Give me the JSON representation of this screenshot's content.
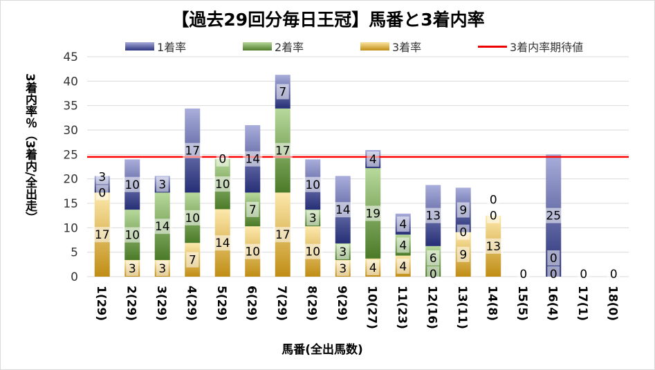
{
  "chart_data": {
    "type": "bar",
    "stacked": true,
    "title": "【過去29回分毎日王冠】馬番と3着内率",
    "xlabel": "馬番(全出馬数)",
    "ylabel": "3着内率％（3着内/全出走）",
    "ylim": [
      0,
      45
    ],
    "yticks": [
      0,
      5,
      10,
      15,
      20,
      25,
      30,
      35,
      40,
      45
    ],
    "categories": [
      "1(29)",
      "2(29)",
      "3(29)",
      "4(29)",
      "5(29)",
      "6(29)",
      "7(29)",
      "8(29)",
      "9(29)",
      "10(27)",
      "11(23)",
      "12(16)",
      "13(11)",
      "14(8)",
      "15(5)",
      "16(4)",
      "17(1)",
      "18(0)"
    ],
    "series": [
      {
        "name": "3着率",
        "color": "#d9a521",
        "values": [
          17.2,
          3.4,
          3.4,
          6.9,
          13.8,
          10.3,
          17.2,
          10.3,
          3.4,
          3.7,
          4.3,
          0,
          9.1,
          12.5,
          0,
          0,
          0,
          0
        ],
        "labels": [
          "17",
          "3",
          "3",
          "7",
          "14",
          "10",
          "17",
          "10",
          "3",
          "4",
          "4",
          "0",
          "9",
          "13",
          "0",
          "0",
          "0",
          "0"
        ]
      },
      {
        "name": "2着率",
        "color": "#70a348",
        "values": [
          0,
          10.3,
          13.8,
          10.3,
          10.3,
          6.9,
          17.2,
          3.4,
          3.4,
          18.5,
          4.3,
          6.25,
          0,
          0,
          0,
          0,
          0,
          0
        ],
        "labels": [
          "0",
          "10",
          "14",
          "10",
          "10",
          "7",
          "17",
          "3",
          "3",
          "19",
          "4",
          "6",
          "0",
          "0",
          "",
          "0",
          "",
          ""
        ]
      },
      {
        "name": "1着率",
        "color": "#3f4a9c",
        "values": [
          3.4,
          10.3,
          3.4,
          17.2,
          0,
          13.8,
          6.9,
          10.3,
          13.8,
          3.7,
          4.3,
          12.5,
          9.1,
          0,
          0,
          25,
          0,
          0
        ],
        "labels": [
          "3",
          "10",
          "3",
          "17",
          "0",
          "14",
          "7",
          "10",
          "14",
          "4",
          "4",
          "13",
          "9",
          "0",
          "",
          "25",
          "",
          ""
        ]
      }
    ],
    "reference_line": {
      "name": "3着内率期待値",
      "value": 24.5,
      "color": "#ff0000"
    }
  }
}
